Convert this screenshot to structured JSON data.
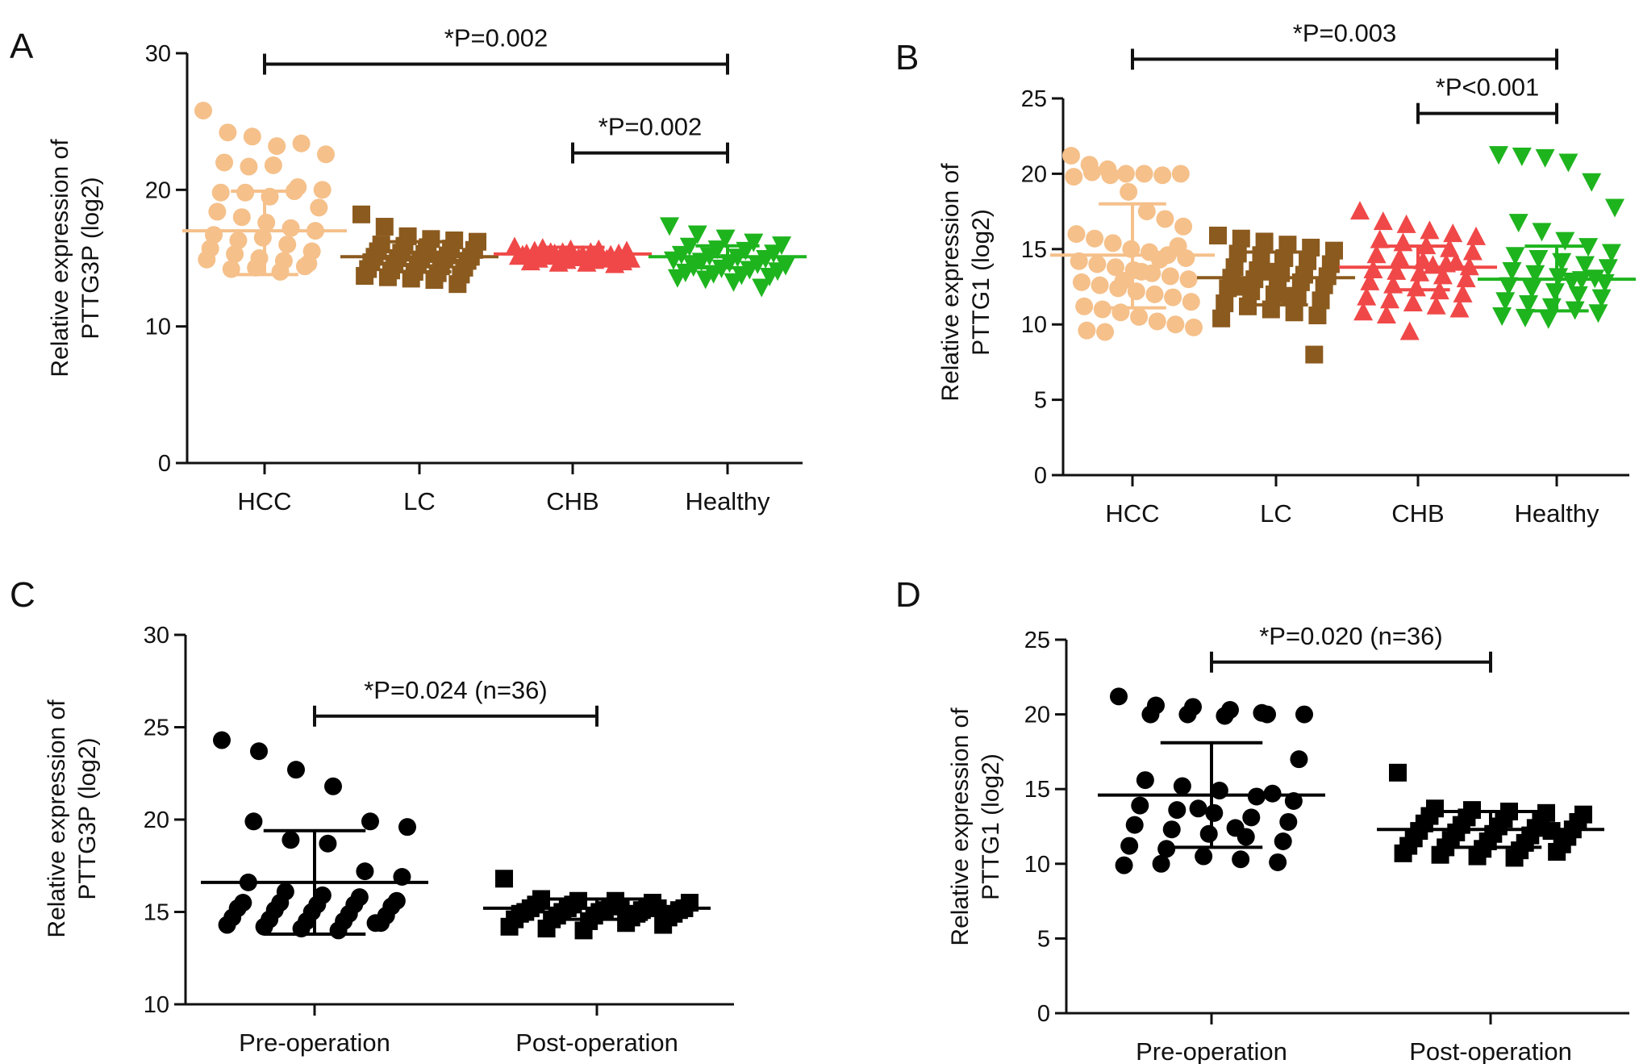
{
  "figure": {
    "panels": [
      "A",
      "B",
      "C",
      "D"
    ]
  },
  "chart_data": [
    {
      "panel": "A",
      "type": "scatter",
      "title": "",
      "xlabel": "",
      "ylabel": [
        "Relative expression of",
        "PTTG3P (log2)"
      ],
      "categories": [
        "HCC",
        "LC",
        "CHB",
        "Healthy"
      ],
      "ylim": [
        0,
        30
      ],
      "yticks": [
        0,
        10,
        20,
        30
      ],
      "series": [
        {
          "name": "HCC",
          "marker": "circle",
          "color": "#F5C08A",
          "mean": 17.0,
          "sd_low": 13.8,
          "sd_high": 19.9,
          "values": [
            25.8,
            24.2,
            23.9,
            23.2,
            23.4,
            22.6,
            22.0,
            21.7,
            21.8,
            20.2,
            20.0,
            19.8,
            19.8,
            19.5,
            19.9,
            18.7,
            18.4,
            18.0,
            17.6,
            17.2,
            17.0,
            16.7,
            16.3,
            16.5,
            16.0,
            15.5,
            15.7,
            15.3,
            15.0,
            14.8,
            14.6,
            14.9,
            14.2,
            14.3,
            14.0,
            14.4
          ]
        },
        {
          "name": "LC",
          "marker": "square",
          "color": "#8B5A1E",
          "mean": 15.1,
          "sd_low": 14.0,
          "sd_high": 16.2,
          "values": [
            18.2,
            17.3,
            16.6,
            16.4,
            16.3,
            16.2,
            16.0,
            15.9,
            15.8,
            15.7,
            15.6,
            15.5,
            15.4,
            15.3,
            15.2,
            15.1,
            15.1,
            15.0,
            14.9,
            14.9,
            14.8,
            14.7,
            14.6,
            14.5,
            14.4,
            14.3,
            14.2,
            14.1,
            14.0,
            13.9,
            13.8,
            13.7,
            13.6,
            13.5,
            13.4,
            13.1
          ]
        },
        {
          "name": "CHB",
          "marker": "triangle-up",
          "color": "#F04848",
          "mean": 15.3,
          "sd_low": 14.8,
          "sd_high": 15.8,
          "values": [
            15.8,
            15.7,
            15.6,
            15.6,
            15.5,
            15.5,
            15.4,
            15.4,
            15.3,
            15.3,
            15.3,
            15.2,
            15.2,
            15.1,
            15.1,
            15.0,
            15.0,
            14.9,
            14.9,
            14.8,
            14.8,
            14.7,
            14.7,
            14.6,
            14.6,
            14.5,
            15.2,
            15.4,
            15.0,
            14.9
          ]
        },
        {
          "name": "Healthy",
          "marker": "triangle-down",
          "color": "#1EB41E",
          "mean": 15.1,
          "sd_low": 14.3,
          "sd_high": 15.9,
          "values": [
            17.4,
            16.8,
            16.5,
            16.2,
            16.0,
            15.9,
            15.7,
            15.6,
            15.4,
            15.3,
            15.2,
            15.1,
            15.0,
            14.9,
            14.8,
            14.7,
            14.6,
            14.5,
            14.4,
            14.3,
            14.2,
            14.1,
            14.0,
            13.9,
            13.8,
            13.7,
            13.6,
            13.5,
            13.3,
            12.9
          ]
        }
      ],
      "annotations": [
        {
          "text": "*P=0.002",
          "from": 0,
          "to": 3,
          "y": 29.2
        },
        {
          "text": "*P=0.002",
          "from": 2,
          "to": 3,
          "y": 22.7
        }
      ]
    },
    {
      "panel": "B",
      "type": "scatter",
      "title": "",
      "xlabel": "",
      "ylabel": [
        "Relative expression of",
        "PTTG1 (log2)"
      ],
      "categories": [
        "HCC",
        "LC",
        "CHB",
        "Healthy"
      ],
      "ylim": [
        0,
        25
      ],
      "yticks": [
        0,
        5,
        10,
        15,
        20,
        25
      ],
      "series": [
        {
          "name": "HCC",
          "marker": "circle",
          "color": "#F5C08A",
          "mean": 14.6,
          "sd_low": 11.1,
          "sd_high": 18.0,
          "values": [
            21.2,
            20.6,
            20.3,
            20.0,
            20.0,
            19.9,
            20.0,
            19.8,
            20.1,
            19.9,
            18.8,
            17.5,
            17.0,
            16.5,
            16.0,
            15.7,
            15.4,
            15.0,
            14.8,
            14.6,
            14.4,
            14.2,
            14.0,
            13.8,
            13.6,
            13.4,
            13.2,
            13.0,
            12.8,
            12.6,
            12.4,
            12.2,
            12.0,
            11.8,
            11.5,
            11.2,
            11.0,
            10.8,
            10.5,
            10.2,
            10.0,
            9.8,
            9.6,
            9.5,
            12.9,
            13.5,
            14.3,
            15.2
          ]
        },
        {
          "name": "LC",
          "marker": "square",
          "color": "#8B5A1E",
          "mean": 13.1,
          "sd_low": 11.3,
          "sd_high": 14.8,
          "values": [
            15.9,
            15.7,
            15.5,
            15.3,
            15.1,
            14.9,
            14.7,
            14.6,
            14.4,
            14.2,
            14.0,
            13.8,
            13.6,
            13.4,
            13.3,
            13.2,
            13.1,
            13.0,
            12.9,
            12.8,
            12.6,
            12.4,
            12.2,
            12.0,
            11.8,
            11.6,
            11.4,
            11.2,
            11.0,
            10.8,
            10.6,
            10.4,
            12.5,
            13.5,
            11.9,
            8.0
          ]
        },
        {
          "name": "CHB",
          "marker": "triangle-up",
          "color": "#F04848",
          "mean": 13.8,
          "sd_low": 12.3,
          "sd_high": 15.2,
          "values": [
            17.5,
            16.8,
            16.6,
            16.2,
            16.0,
            15.8,
            15.6,
            15.4,
            15.2,
            15.0,
            14.8,
            14.6,
            14.4,
            14.2,
            14.0,
            13.8,
            13.6,
            13.5,
            13.4,
            13.2,
            13.0,
            12.8,
            12.6,
            12.4,
            12.2,
            12.0,
            11.8,
            11.6,
            11.4,
            11.2,
            11.0,
            10.8,
            10.6,
            9.5,
            13.9,
            14.1
          ]
        },
        {
          "name": "Healthy",
          "marker": "triangle-down",
          "color": "#1EB41E",
          "mean": 13.0,
          "sd_low": 10.9,
          "sd_high": 15.2,
          "values": [
            21.3,
            21.2,
            21.1,
            20.8,
            19.5,
            17.8,
            16.8,
            16.2,
            15.6,
            15.2,
            14.8,
            14.6,
            14.4,
            14.2,
            14.0,
            13.8,
            13.6,
            13.4,
            13.2,
            13.0,
            12.8,
            12.6,
            12.4,
            12.2,
            12.0,
            11.8,
            11.6,
            11.4,
            11.2,
            11.0,
            10.8,
            10.6,
            10.5,
            10.4,
            12.9,
            13.1
          ]
        }
      ],
      "annotations": [
        {
          "text": "*P=0.003",
          "from": 0,
          "to": 3,
          "y": 27.6
        },
        {
          "text": "*P<0.001",
          "from": 2,
          "to": 3,
          "y": 24.0
        }
      ]
    },
    {
      "panel": "C",
      "type": "scatter",
      "title": "",
      "xlabel": "",
      "ylabel": [
        "Relative expression of",
        "PTTG3P (log2)"
      ],
      "categories": [
        "Pre-operation",
        "Post-operation"
      ],
      "ylim": [
        10,
        30
      ],
      "yticks": [
        10,
        15,
        20,
        25,
        30
      ],
      "series": [
        {
          "name": "Pre-operation",
          "marker": "circle",
          "color": "#000000",
          "mean": 16.6,
          "sd_low": 13.8,
          "sd_high": 19.4,
          "values": [
            24.3,
            23.7,
            22.7,
            21.8,
            19.9,
            19.6,
            19.9,
            18.9,
            18.7,
            17.2,
            16.9,
            16.6,
            16.1,
            15.9,
            15.8,
            15.6,
            15.5,
            15.5,
            15.4,
            15.4,
            15.3,
            15.2,
            15.1,
            15.0,
            14.9,
            14.8,
            14.7,
            14.6,
            14.5,
            14.5,
            14.4,
            14.3,
            14.2,
            14.1,
            14.0,
            14.4
          ]
        },
        {
          "name": "Post-operation",
          "marker": "square",
          "color": "#000000",
          "mean": 15.2,
          "sd_low": 14.6,
          "sd_high": 15.7,
          "values": [
            16.8,
            15.7,
            15.6,
            15.6,
            15.5,
            15.5,
            15.4,
            15.4,
            15.3,
            15.3,
            15.2,
            15.2,
            15.2,
            15.1,
            15.1,
            15.1,
            15.0,
            15.0,
            15.0,
            14.9,
            14.9,
            14.9,
            14.8,
            14.8,
            14.7,
            14.7,
            14.6,
            14.6,
            14.5,
            14.4,
            14.3,
            14.2,
            14.1,
            14.0,
            15.3,
            15.2
          ]
        }
      ],
      "annotations": [
        {
          "text": "*P=0.024 (n=36)",
          "from": 0,
          "to": 1,
          "y": 25.6
        }
      ]
    },
    {
      "panel": "D",
      "type": "scatter",
      "title": "",
      "xlabel": "",
      "ylabel": [
        "Relative expression of",
        "PTTG1 (log2)"
      ],
      "categories": [
        "Pre-operation",
        "Post-operation"
      ],
      "ylim": [
        0,
        25
      ],
      "yticks": [
        0,
        5,
        10,
        15,
        20,
        25
      ],
      "series": [
        {
          "name": "Pre-operation",
          "marker": "circle",
          "color": "#000000",
          "mean": 14.6,
          "sd_low": 11.1,
          "sd_high": 18.1,
          "values": [
            21.2,
            20.6,
            20.5,
            20.3,
            20.0,
            20.0,
            20.0,
            20.0,
            19.9,
            20.1,
            17.0,
            15.6,
            15.2,
            14.9,
            14.5,
            14.2,
            13.9,
            13.6,
            13.4,
            13.1,
            12.8,
            12.6,
            12.3,
            12.0,
            11.8,
            11.5,
            11.2,
            11.0,
            10.5,
            10.3,
            10.1,
            9.9,
            10.0,
            13.7,
            12.4,
            14.7
          ]
        },
        {
          "name": "Post-operation",
          "marker": "square",
          "color": "#000000",
          "mean": 12.3,
          "sd_low": 11.1,
          "sd_high": 13.5,
          "values": [
            16.1,
            13.7,
            13.6,
            13.5,
            13.4,
            13.3,
            13.2,
            13.1,
            13.0,
            12.9,
            12.8,
            12.7,
            12.6,
            12.5,
            12.4,
            12.3,
            12.2,
            12.1,
            12.0,
            11.9,
            11.8,
            11.7,
            11.6,
            11.5,
            11.4,
            11.3,
            11.2,
            11.1,
            11.0,
            10.9,
            10.8,
            10.7,
            10.6,
            10.5,
            10.4,
            12.2
          ]
        }
      ],
      "annotations": [
        {
          "text": "*P=0.020 (n=36)",
          "from": 0,
          "to": 1,
          "y": 23.5
        }
      ]
    }
  ]
}
